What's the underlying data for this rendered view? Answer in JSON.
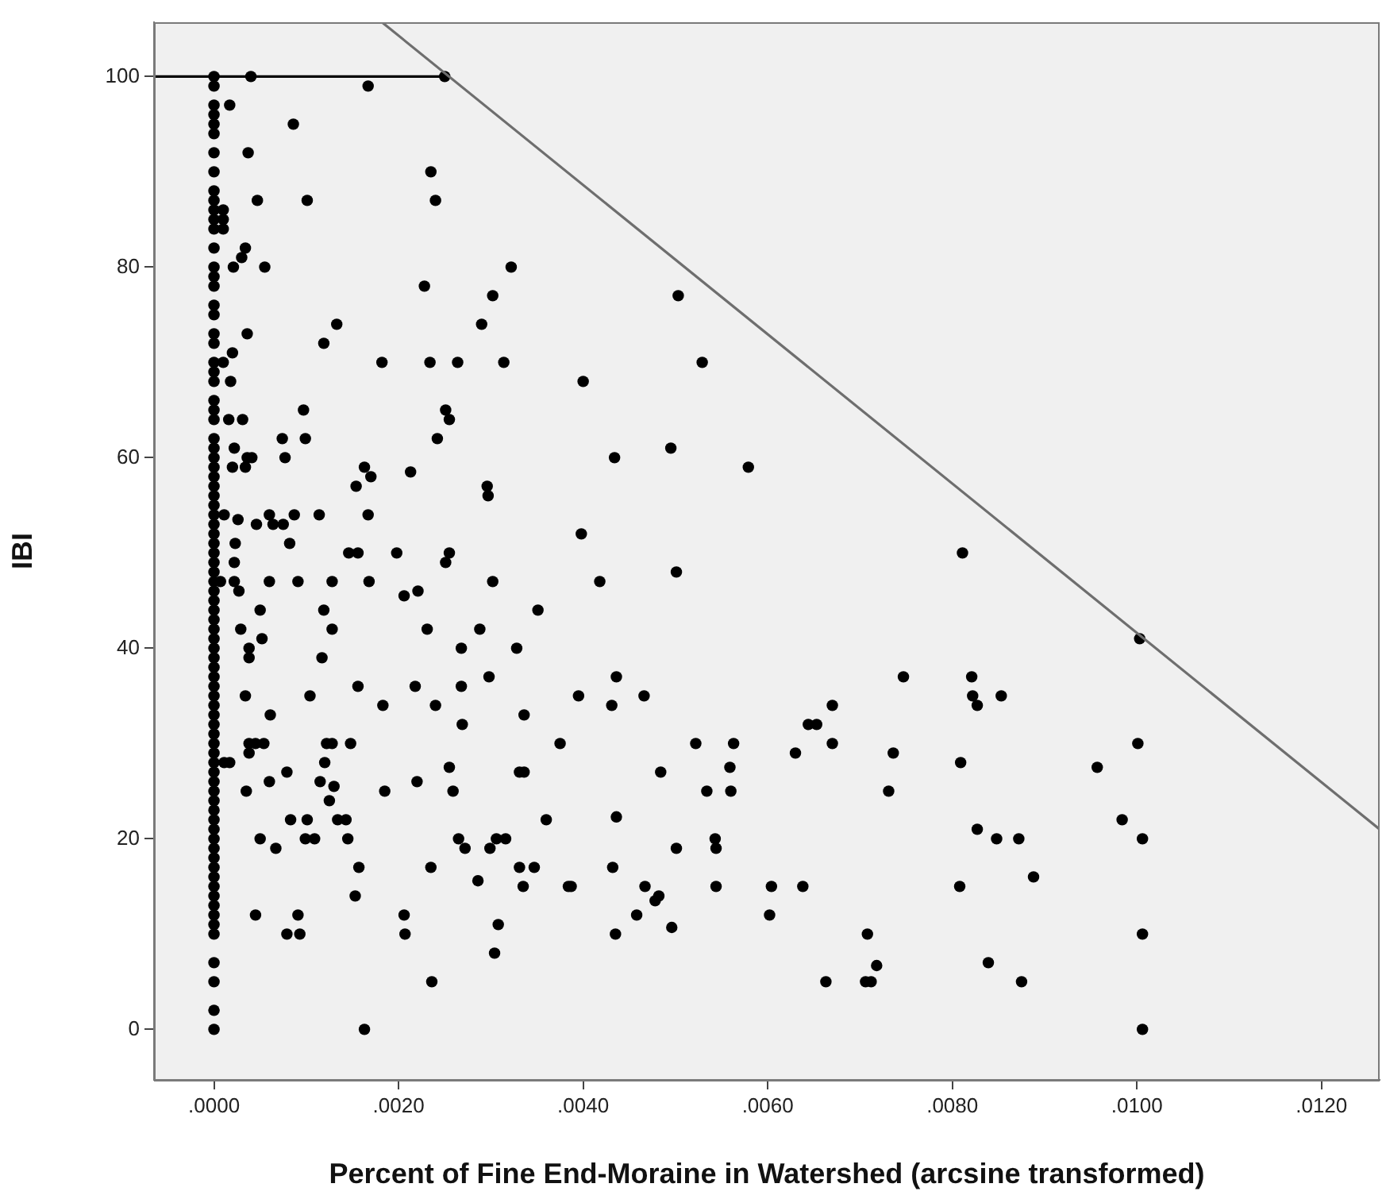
{
  "chart_data": {
    "type": "scatter",
    "xlabel": "Percent of Fine End-Moraine in Watershed (arcsine transformed)",
    "ylabel": "IBI",
    "xlim": [
      -0.00065,
      0.01263
    ],
    "ylim": [
      -5.3,
      105.7
    ],
    "xticks": [
      {
        "value": 0,
        "label": ".0000"
      },
      {
        "value": 0.002,
        "label": ".0020"
      },
      {
        "value": 0.004,
        "label": ".0040"
      },
      {
        "value": 0.006,
        "label": ".0060"
      },
      {
        "value": 0.008,
        "label": ".0080"
      },
      {
        "value": 0.01,
        "label": ".0100"
      },
      {
        "value": 0.012,
        "label": ".0120"
      }
    ],
    "yticks": [
      0,
      20,
      40,
      60,
      80,
      100
    ],
    "grid": false,
    "legend": false,
    "marker": "circle",
    "series": [
      {
        "color": "#000000",
        "x": [
          0,
          0,
          0,
          0,
          0,
          0,
          0,
          0,
          0,
          0,
          0,
          0,
          0,
          0,
          0,
          0,
          0,
          0,
          0,
          0,
          0,
          0,
          0,
          0,
          0,
          0,
          0,
          0,
          0,
          0,
          0,
          0,
          0,
          0,
          0,
          0,
          0,
          0,
          0,
          0,
          0,
          0,
          0,
          0,
          0,
          0,
          0,
          0,
          0,
          0,
          0,
          0,
          0,
          0,
          0,
          0,
          0,
          0,
          0,
          0,
          0,
          0,
          0,
          0,
          0,
          0,
          0,
          0,
          0,
          0,
          0,
          0,
          0,
          0,
          0,
          0,
          0,
          0,
          0,
          0,
          0,
          0,
          0,
          0,
          0.0004,
          0.0025,
          0.00167,
          0.00017,
          0.00086,
          0.00037,
          0.00235,
          0.0024,
          0.00047,
          0.00101,
          0.0001,
          0.0001,
          0.0001,
          0.00034,
          0.0003,
          0.00021,
          0.00055,
          0.00322,
          0.00228,
          0.00302,
          0.00133,
          0.0029,
          0.00036,
          0.00119,
          0.00182,
          0.00234,
          0.00264,
          0.00314,
          0.0002,
          0.0001,
          0.00018,
          0.00097,
          0.00251,
          0.00255,
          0.00016,
          0.00031,
          0.00074,
          0.00099,
          0.00242,
          0.00022,
          0.00036,
          0.00041,
          0.0002,
          0.00034,
          0.00077,
          0.00163,
          0.0017,
          0.00213,
          0.00154,
          0.00296,
          0.00297,
          0.00011,
          0.00026,
          0.00046,
          0.0006,
          0.00064,
          0.00075,
          0.00087,
          0.00114,
          0.00167,
          0.00023,
          0.00082,
          0.00146,
          0.00156,
          0.00198,
          0.00255,
          0.00022,
          0.00251,
          7e-05,
          0.00022,
          0.00027,
          0.0006,
          0.00091,
          0.00128,
          0.00168,
          0.00302,
          0.00206,
          0.00221,
          0.0005,
          0.00119,
          0.00351,
          0.00029,
          0.00128,
          0.00231,
          0.00288,
          0.00052,
          0.00038,
          0.00038,
          0.00117,
          0.00268,
          0.00328,
          0.00298,
          0.00034,
          0.00104,
          0.00156,
          0.00218,
          0.00268,
          0.00183,
          0.0024,
          0.00269,
          0.00336,
          0.00061,
          0.00038,
          0.00045,
          0.00054,
          0.00038,
          0.00122,
          0.00128,
          0.00148,
          0.00375,
          0.00011,
          0.00017,
          0.0012,
          0.00255,
          0.00331,
          0.00336,
          0.00079,
          0.0006,
          0.00115,
          0.0022,
          0.00035,
          0.0013,
          0.00185,
          0.00259,
          0.00125,
          0.00083,
          0.00101,
          0.00134,
          0.00143,
          0.0036,
          0.0005,
          0.00099,
          0.00109,
          0.00145,
          0.00265,
          0.00306,
          0.00316,
          0.00067,
          0.00272,
          0.00299,
          0.00157,
          0.00235,
          0.00331,
          0.00347,
          0.00286,
          0.00335,
          0.00384,
          0.00153,
          0.00045,
          0.00091,
          0.00206,
          0.00079,
          0.00093,
          0.00207,
          0.00308,
          0.00304,
          0.00236,
          0.00163,
          0.00503,
          0.00529,
          0.004,
          0.00434,
          0.00495,
          0.00579,
          0.00398,
          0.00811,
          0.00418,
          0.00501,
          0.00436,
          0.00395,
          0.00431,
          0.00466,
          0.00522,
          0.00563,
          0.00559,
          0.00484,
          0.00534,
          0.0056,
          0.0063,
          0.00644,
          0.00653,
          0.0067,
          0.0067,
          0.00736,
          0.00731,
          0.00747,
          0.00821,
          0.00822,
          0.00827,
          0.00809,
          0.00827,
          0.00436,
          0.00501,
          0.00543,
          0.00544,
          0.00432,
          0.00387,
          0.00467,
          0.00544,
          0.00604,
          0.00638,
          0.00808,
          0.00482,
          0.00478,
          0.00458,
          0.00602,
          0.00435,
          0.00496,
          0.00708,
          0.00718,
          0.00663,
          0.00706,
          0.00712,
          0.01003,
          0.00853,
          0.01001,
          0.00957,
          0.00848,
          0.00872,
          0.00984,
          0.01006,
          0.00888,
          0.00839,
          0.00875,
          0.01006,
          0.01006
        ],
        "values": [
          100,
          99,
          97,
          96,
          95,
          94,
          92,
          90,
          88,
          87,
          86,
          85,
          84,
          82,
          80,
          79,
          78,
          76,
          75,
          73,
          72,
          70,
          69,
          68,
          66,
          65,
          64,
          62,
          61,
          60,
          59,
          58,
          57,
          56,
          55,
          54,
          53,
          52,
          51,
          50,
          49,
          48,
          47,
          46,
          45,
          44,
          43,
          42,
          41,
          40,
          39,
          38,
          37,
          36,
          35,
          34,
          33,
          32,
          31,
          30,
          29,
          28,
          27,
          26,
          25,
          24,
          23,
          22,
          21,
          20,
          19,
          18,
          17,
          16,
          15,
          14,
          13,
          12,
          11,
          10,
          7,
          5,
          2,
          0,
          100,
          100,
          99,
          97,
          95,
          92,
          90,
          87,
          87,
          87,
          86,
          85,
          84,
          82,
          81,
          80,
          80,
          80,
          78,
          77,
          74,
          74,
          73,
          72,
          70,
          70,
          70,
          70,
          71,
          70,
          68,
          65,
          65,
          64,
          64,
          64,
          62,
          62,
          62,
          61,
          60,
          60,
          59,
          59,
          60,
          59,
          58,
          58.5,
          57,
          57,
          56,
          54,
          53.5,
          53,
          54,
          53,
          53,
          54,
          54,
          54,
          51,
          51,
          50,
          50,
          50,
          50,
          49,
          49,
          47,
          47,
          46,
          47,
          47,
          47,
          47,
          47,
          45.5,
          46,
          44,
          44,
          44,
          42,
          42,
          42,
          42,
          41,
          40,
          39,
          39,
          40,
          40,
          37,
          35,
          35,
          36,
          36,
          36,
          34,
          34,
          32,
          33,
          33,
          30,
          30,
          30,
          29,
          30,
          30,
          30,
          30,
          28,
          28,
          28,
          27.5,
          27,
          27,
          27,
          26,
          26,
          26,
          25,
          25.5,
          25,
          25,
          24,
          22,
          22,
          22,
          22,
          22,
          20,
          20,
          20,
          20,
          20,
          20,
          20,
          19,
          19,
          19,
          17,
          17,
          17,
          17,
          15.6,
          15,
          15,
          14,
          12,
          12,
          12,
          10,
          10,
          10,
          11,
          8,
          5,
          0,
          77,
          70,
          68,
          60,
          61,
          59,
          52,
          50,
          47,
          48,
          37,
          35,
          34,
          35,
          30,
          30,
          27.5,
          27,
          25,
          25,
          29,
          32,
          32,
          34,
          30,
          29,
          25,
          37,
          37,
          35,
          34,
          28,
          21,
          22.3,
          19,
          20,
          19,
          17,
          15,
          15,
          15,
          15,
          15,
          15,
          14,
          13.5,
          12,
          12,
          10,
          10.7,
          10,
          6.7,
          5,
          5,
          5,
          41,
          35,
          30,
          27.5,
          20,
          20,
          22,
          20,
          16,
          7,
          5,
          10,
          0
        ]
      },
      {
        "type": "line",
        "marker": "none",
        "color": "#000000",
        "x": [
          -0.00065,
          0.0025
        ],
        "values": [
          100,
          100
        ]
      },
      {
        "type": "line",
        "marker": "none",
        "color": "#6e6e6e",
        "x": [
          0.00182,
          0.01263
        ],
        "values": [
          105.7,
          21
        ]
      }
    ]
  }
}
